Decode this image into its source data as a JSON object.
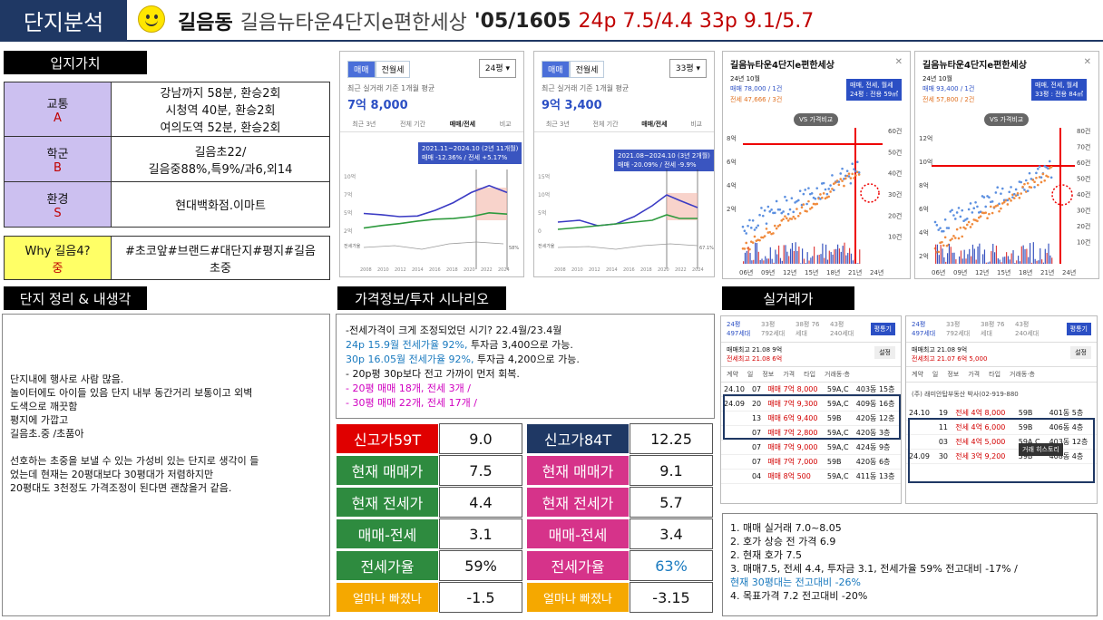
{
  "header": {
    "tab": "단지분석",
    "name": "길음동",
    "complex": "길음뉴타운4단지e편한세상",
    "meta": "'05/1605",
    "prices": "24p 7.5/4.4 33p 9.1/5.7"
  },
  "location": {
    "section_label": "입지가치",
    "rows": [
      {
        "cat": "교통",
        "grade": "A",
        "text": [
          "강남까지 58분, 환승2회",
          "시청역 40분, 환승2회",
          "여의도역 52분, 환승2회"
        ]
      },
      {
        "cat": "학군",
        "grade": "B",
        "text": [
          "길음초22/",
          "길음중88%,특9%/과6,외14"
        ]
      },
      {
        "cat": "환경",
        "grade": "S",
        "text": [
          "현대백화점.이마트"
        ]
      }
    ],
    "why": {
      "cat": "Why 길음4?",
      "grade": "중",
      "text": "#초코앞#브랜드#대단지#평지#길음초중"
    }
  },
  "summary": {
    "section_label": "단지 정리 & 내생각",
    "lines": [
      "단지내에 행사로 사람 많음.",
      "놀이터에도 아이들 있음 단지 내부 동간거리 보통이고 외벽",
      "도색으로 깨끗함",
      "평지에 가깝고",
      "길음초.중 /초품아",
      "",
      "선호하는 초중을 보낼 수 있는 가성비 있는 단지로 생각이 들",
      "었는데 현재는 20평대보다 30평대가 저렴하지만",
      "20평대도 3천정도 가격조정이 된다면 괜찮을거 같음."
    ]
  },
  "charts": {
    "left": {
      "tab_on": "매매",
      "tab_off": "전월세",
      "select": "24평",
      "caption": "최근 실거래 기준 1개월 평균",
      "price": "7억 8,000",
      "periods": [
        "최근 3년",
        "전체 기간",
        "매매/전세",
        "비교"
      ],
      "tooltip1": "2021.11~2024.10 (2년 11개월)",
      "tooltip2": "매매 -12.36% / 전세 +5.17%",
      "y_ticks": [
        "10억",
        "7억",
        "5억",
        "2억"
      ],
      "x_ticks": [
        "2008",
        "2010",
        "2012",
        "2014",
        "2016",
        "2018",
        "2020",
        "2022",
        "2024"
      ],
      "aux_label": "전세가율",
      "aux_val": "58%"
    },
    "mid": {
      "tab_on": "매매",
      "tab_off": "전월세",
      "select": "33평",
      "caption": "최근 실거래 기준 1개월 평균",
      "price": "9억 3,400",
      "periods": [
        "최근 3년",
        "전체 기간",
        "매매/전세",
        "비교"
      ],
      "tooltip1": "2021.08~2024.10 (3년 2개월)",
      "tooltip2": "매매 -20.09% / 전세 -9.9%",
      "y_ticks": [
        "15억",
        "10억",
        "5억",
        "0"
      ],
      "x_ticks": [
        "2008",
        "2010",
        "2012",
        "2014",
        "2016",
        "2018",
        "2020",
        "2022",
        "2024"
      ],
      "aux_label": "전세가율",
      "aux_val": "67.1%"
    },
    "right1": {
      "title": "길음뉴타운4단지e편한세상",
      "month": "24년 10월",
      "sale": "매매 78,000 / 1건",
      "rent": "전세 47,666 / 3건",
      "badge": "매매, 전세, 월세",
      "badge2": "24평 : 전용 59㎡",
      "compare": "VS 가격비교",
      "y_left": [
        "8억",
        "6억",
        "4억",
        "2억"
      ],
      "y_right": [
        "60건",
        "50건",
        "40건",
        "30건",
        "20건",
        "10건"
      ],
      "x_ticks": [
        "06년",
        "09년",
        "12년",
        "15년",
        "18년",
        "21년",
        "24년"
      ]
    },
    "right2": {
      "title": "길음뉴타운4단지e편한세상",
      "month": "24년 10월",
      "sale": "매매 93,400 / 1건",
      "rent": "전세 57,800 / 2건",
      "badge": "매매, 전세, 월세",
      "badge2": "33평 : 전용 84㎡",
      "compare": "VS 가격비교",
      "y_left": [
        "12억",
        "10억",
        "8억",
        "6억",
        "4억",
        "2억"
      ],
      "y_right": [
        "80건",
        "70건",
        "60건",
        "50건",
        "40건",
        "30건",
        "20건",
        "10건"
      ],
      "x_ticks": [
        "06년",
        "09년",
        "12년",
        "15년",
        "18년",
        "21년",
        "24년"
      ]
    },
    "chart_data": {
      "type": "line",
      "x": [
        2008,
        2010,
        2012,
        2014,
        2016,
        2018,
        2020,
        2022,
        2024
      ],
      "series": [
        {
          "name": "매매",
          "values": [
            4.5,
            4.3,
            4.0,
            4.1,
            5.0,
            6.2,
            7.8,
            8.9,
            7.8
          ]
        },
        {
          "name": "전세",
          "values": [
            2.2,
            2.6,
            2.9,
            3.3,
            3.6,
            3.7,
            4.0,
            4.6,
            4.4
          ]
        }
      ],
      "ylim": [
        0,
        10
      ]
    }
  },
  "scenario": {
    "section_label": "가격정보/투자 시나리오",
    "lines": [
      {
        "text": "-전세가격이 크게 조정되었던 시기? 22.4월/23.4월",
        "color": "#111"
      },
      {
        "text": "24p 15.9월 전세가율 92%,",
        "tail": " 투자금 3,400으로 가능.",
        "color": "#1a7abf"
      },
      {
        "text": "30p 16.05월 전세가율 92%,",
        "tail": " 투자금 4,200으로 가능.",
        "color": "#1a7abf"
      },
      {
        "text": "- 20p평  30p보다 전고 가까이 먼저 회복.",
        "color": "#111"
      },
      {
        "text": "-   20평 매매 18개, 전세 3개 /",
        "color": "#d000c0"
      },
      {
        "text": "-   30평 매매 22개, 전세 17개 /",
        "color": "#d000c0"
      }
    ]
  },
  "metrics_left": [
    {
      "label": "신고가59T",
      "value": "9.0",
      "cls": "red-bg"
    },
    {
      "label": "현재 매매가",
      "value": "7.5",
      "cls": "green-bg"
    },
    {
      "label": "현재 전세가",
      "value": "4.4",
      "cls": "green-bg"
    },
    {
      "label": "매매-전세",
      "value": "3.1",
      "cls": "green-bg"
    },
    {
      "label": "전세가율",
      "value": "59%",
      "cls": "green-bg"
    },
    {
      "label": "얼마나 빠졌나",
      "value": "-1.5",
      "cls": "orange-bg"
    }
  ],
  "metrics_right": [
    {
      "label": "신고가84T",
      "value": "12.25",
      "cls": "navy-bg"
    },
    {
      "label": "현재 매매가",
      "value": "9.1",
      "cls": "pink-bg"
    },
    {
      "label": "현재 전세가",
      "value": "5.7",
      "cls": "pink-bg"
    },
    {
      "label": "매매-전세",
      "value": "3.4",
      "cls": "pink-bg"
    },
    {
      "label": "전세가율",
      "value": "63%",
      "cls": "pink-bg"
    },
    {
      "label": "얼마나 빠졌나",
      "value": "-3.15",
      "cls": "orange-bg"
    }
  ],
  "transactions": {
    "section_label": "실거래가",
    "left": {
      "tabs": [
        "24평 497세대",
        "33평 792세대",
        "38평 76세대",
        "43평 240세대"
      ],
      "btn": "평통기",
      "max1": "매매최고 21.08 9억",
      "max2": "전세최고 21.08 6억",
      "btn2": "설정",
      "head": [
        "계약",
        "일",
        "정보",
        "가격",
        "타입",
        "거래동·층"
      ],
      "rows": [
        [
          "24.10",
          "07",
          "매매 7억 8,000",
          "59A,C",
          "403동 15층"
        ],
        [
          "24.09",
          "20",
          "매매 7억 9,300",
          "59A,C",
          "409동 16층"
        ],
        [
          "",
          "13",
          "매매 6억 9,400",
          "59B",
          "420동 12층"
        ],
        [
          "",
          "07",
          "매매 7억 2,800",
          "59A,C",
          "420동 3층"
        ],
        [
          "",
          "07",
          "매매 7억 9,000",
          "59A,C",
          "424동 9층"
        ],
        [
          "",
          "07",
          "매매 7억 7,000",
          "59B",
          "420동 6층"
        ],
        [
          "",
          "04",
          "매매 8억 500",
          "59A,C",
          "411동 13층"
        ]
      ]
    },
    "right": {
      "tabs": [
        "24평 497세대",
        "33평 792세대",
        "38평 76세대",
        "43평 240세대"
      ],
      "btn": "평통기",
      "max1": "매매최고 21.08 9억",
      "max2": "전세최고 21.07 6억 5,000",
      "btn2": "설정",
      "head": [
        "계약",
        "일",
        "정보",
        "가격",
        "타입",
        "거래동·층"
      ],
      "agent": "(주) 래미안탑부동산 박사(02-919-880",
      "rows": [
        [
          "24.10",
          "19",
          "전세 4억 8,000",
          "59B",
          "401동 5층"
        ],
        [
          "",
          "11",
          "전세 4억 6,000",
          "59B",
          "406동 4층"
        ],
        [
          "",
          "03",
          "전세 4억 5,000",
          "59A,C",
          "403동 12층"
        ],
        [
          "24.09",
          "30",
          "전세 3억 9,200",
          "59B",
          "408동 4층"
        ]
      ],
      "history": "거래 히스토리"
    },
    "notes": [
      {
        "text": "1. 매매 실거래 7.0~8.05",
        "color": "#111"
      },
      {
        "text": "2. 호가 상승 전 가격 6.9",
        "color": "#111"
      },
      {
        "text": "2. 현재 호가 7.5",
        "color": "#111"
      },
      {
        "text": "3. 매매7.5, 전세 4.4, 투자금 3.1, 전세가율 59% 전고대비 -17% /",
        "color": "#111"
      },
      {
        "text": "현재 30평대는 전고대비 -26%",
        "color": "#1a7abf"
      },
      {
        "text": "4. 목표가격 7.2 전고대비 -20%",
        "color": "#111"
      }
    ]
  }
}
